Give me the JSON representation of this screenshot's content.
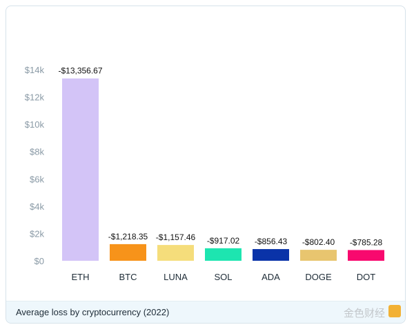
{
  "chart_data": {
    "type": "bar",
    "title": "Average loss by cryptocurrency (2022)",
    "xlabel": "",
    "ylabel": "",
    "categories": [
      "ETH",
      "BTC",
      "LUNA",
      "SOL",
      "ADA",
      "DOGE",
      "DOT"
    ],
    "values": [
      13356.67,
      1218.35,
      1157.46,
      917.02,
      856.43,
      802.4,
      785.28
    ],
    "data_labels": [
      "-$13,356.67",
      "-$1,218.35",
      "-$1,157.46",
      "-$917.02",
      "-$856.43",
      "-$802.40",
      "-$785.28"
    ],
    "colors": [
      "#d3c4f7",
      "#f7931a",
      "#f5dd7b",
      "#1de5b0",
      "#0a33a8",
      "#e8c56f",
      "#f8096e"
    ],
    "ylim": [
      0,
      14000
    ],
    "yticks": [
      0,
      2000,
      4000,
      6000,
      8000,
      10000,
      12000,
      14000
    ],
    "ytick_labels": [
      "$0",
      "$2k",
      "$4k",
      "$6k",
      "$8k",
      "$10k",
      "$12k",
      "$14k"
    ],
    "grid": false,
    "legend": "none"
  },
  "footer": {
    "title": "Average loss by cryptocurrency (2022)",
    "watermark": "金色财经"
  }
}
